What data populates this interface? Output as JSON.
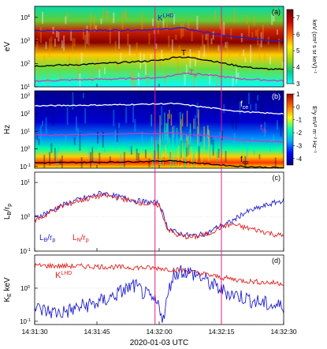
{
  "chart_data": [
    {
      "type": "heatmap",
      "panel_label": "(a)",
      "ylabel": "eV",
      "yscale": "log",
      "ylim": [
        10,
        30000
      ],
      "yticks": [
        {
          "v": 10,
          "t": "10"
        },
        {
          "v": 100,
          "t": "10"
        },
        {
          "v": 1000,
          "t": "10"
        },
        {
          "v": 10000,
          "t": "10"
        }
      ],
      "ytick_exp": [
        "1",
        "2",
        "3",
        "4"
      ],
      "colorbar": {
        "label": "keV (cm² s sr keV)⁻¹",
        "range": [
          3,
          7.5
        ],
        "ticks": [
          "3",
          "4",
          "5",
          "6",
          "7"
        ],
        "colors": [
          "#00ffff",
          "#00cc88",
          "#aadd00",
          "#ffee00",
          "#ff6600",
          "#cc0000",
          "#660000"
        ]
      },
      "annotations": [
        {
          "text": "K",
          "sup": "LHD",
          "color": "#2020d0"
        },
        {
          "text": "T",
          "color": "#000000"
        },
        {
          "text": "T",
          "sub": "e",
          "color": "#c040c0"
        }
      ],
      "series": [
        {
          "name": "K_LHD",
          "color": "#2020d0",
          "x": [
            0,
            10,
            20,
            30,
            32,
            35,
            40,
            45,
            50,
            55,
            60
          ],
          "y": [
            2600,
            2700,
            2800,
            3000,
            3200,
            3500,
            2500,
            1700,
            1300,
            1100,
            1000
          ]
        },
        {
          "name": "T",
          "color": "#000000",
          "x": [
            0,
            10,
            20,
            30,
            32,
            34,
            38,
            42,
            46,
            50,
            55,
            60
          ],
          "y": [
            80,
            90,
            110,
            140,
            160,
            200,
            180,
            140,
            100,
            75,
            60,
            55
          ]
        },
        {
          "name": "T_e",
          "color": "#c040c0",
          "x": [
            0,
            10,
            20,
            30,
            33,
            36,
            40,
            45,
            50,
            55,
            60
          ],
          "y": [
            18,
            20,
            22,
            25,
            30,
            40,
            35,
            28,
            22,
            20,
            18
          ]
        }
      ]
    },
    {
      "type": "heatmap",
      "panel_label": "(b)",
      "ylabel": "Hz",
      "yscale": "log",
      "ylim": [
        0.08,
        2000
      ],
      "yticks": [
        {
          "v": 0.1,
          "t": "10"
        },
        {
          "v": 1,
          "t": "10"
        },
        {
          "v": 10,
          "t": "10"
        },
        {
          "v": 100,
          "t": "10"
        },
        {
          "v": 1000,
          "t": "10"
        }
      ],
      "ytick_exp": [
        "-1",
        "0",
        "1",
        "2",
        "3"
      ],
      "colorbar": {
        "label": "E²y mV² m⁻² Hz⁻¹",
        "range": [
          -4.5,
          1
        ],
        "ticks": [
          "-4",
          "-3",
          "-2",
          "-1",
          "0",
          "1"
        ],
        "colors": [
          "#000080",
          "#0000ff",
          "#00aaff",
          "#00ffaa",
          "#ffff00",
          "#ff6600",
          "#aa0000"
        ]
      },
      "annotations": [
        {
          "text": "f",
          "sub": "ce",
          "color": "#ffffff"
        },
        {
          "text": "f",
          "sub": "lh",
          "color": "#c040c0"
        },
        {
          "text": "f",
          "sub": "cp",
          "color": "#000000"
        }
      ],
      "series": [
        {
          "name": "f_ce",
          "color": "#ffffff",
          "x": [
            0,
            10,
            20,
            30,
            33,
            36,
            40,
            45,
            50,
            55,
            60
          ],
          "y": [
            280,
            300,
            320,
            360,
            380,
            330,
            250,
            180,
            130,
            110,
            100
          ]
        },
        {
          "name": "f_lh",
          "color": "#c040c0",
          "x": [
            0,
            10,
            20,
            30,
            33,
            36,
            40,
            45,
            50,
            55,
            60
          ],
          "y": [
            6,
            6.5,
            7,
            7.5,
            8,
            7,
            6,
            4.5,
            3.2,
            2.8,
            2.5
          ]
        },
        {
          "name": "f_cp",
          "color": "#000000",
          "x": [
            0,
            10,
            20,
            30,
            33,
            36,
            40,
            45,
            50,
            55,
            60
          ],
          "y": [
            0.16,
            0.17,
            0.18,
            0.2,
            0.22,
            0.18,
            0.15,
            0.12,
            0.1,
            0.09,
            0.085
          ]
        }
      ]
    },
    {
      "type": "line",
      "panel_label": "(c)",
      "ylabel": "LB/rp",
      "yscale": "log",
      "ylim": [
        0.1,
        20
      ],
      "yticks": [
        {
          "v": 0.1,
          "t": "10"
        },
        {
          "v": 1,
          "t": "10"
        },
        {
          "v": 10,
          "t": "10"
        }
      ],
      "ytick_exp": [
        "-1",
        "0",
        "1"
      ],
      "legend": [
        {
          "main": "L",
          "sub": "B",
          "rest": "/r",
          "sub2": "p",
          "color": "#2020d0"
        },
        {
          "main": "L",
          "sub": "N",
          "rest": "/r",
          "sub2": "p",
          "color": "#e02020"
        }
      ],
      "series": [
        {
          "name": "LB/rp",
          "color": "#2020d0",
          "x": [
            0,
            2,
            4,
            6,
            8,
            10,
            12,
            14,
            16,
            18,
            20,
            22,
            24,
            26,
            28,
            30,
            32,
            34,
            36,
            38,
            40,
            42,
            44,
            46,
            48,
            50,
            52,
            54,
            56,
            58,
            60
          ],
          "y": [
            0.9,
            1.2,
            1.5,
            2.0,
            2.5,
            3.0,
            3.5,
            4.0,
            5.0,
            4.5,
            3.8,
            3.5,
            3.0,
            2.8,
            2.6,
            2.5,
            0.5,
            0.35,
            0.3,
            0.28,
            0.3,
            0.35,
            0.5,
            0.6,
            0.8,
            1.2,
            1.5,
            1.8,
            2.2,
            2.6,
            3.0
          ]
        },
        {
          "name": "LN/rp",
          "color": "#e02020",
          "x": [
            0,
            2,
            4,
            6,
            8,
            10,
            12,
            14,
            16,
            18,
            20,
            22,
            24,
            26,
            28,
            30,
            32,
            34,
            36,
            38,
            40,
            42,
            44,
            46,
            48,
            50,
            52,
            54,
            56,
            58,
            60
          ],
          "y": [
            0.8,
            1.0,
            1.4,
            1.9,
            2.3,
            2.8,
            3.2,
            3.6,
            4.2,
            4.0,
            3.6,
            3.2,
            2.8,
            2.5,
            2.3,
            2.2,
            0.45,
            0.3,
            0.27,
            0.25,
            0.28,
            0.32,
            0.45,
            0.55,
            0.6,
            0.5,
            0.45,
            0.4,
            0.35,
            0.3,
            0.28
          ]
        }
      ]
    },
    {
      "type": "line",
      "panel_label": "(d)",
      "ylabel": "KE keV",
      "yscale": "log",
      "ylim": [
        0.08,
        10
      ],
      "yticks": [
        {
          "v": 0.1,
          "t": "10"
        },
        {
          "v": 1,
          "t": "10"
        }
      ],
      "ytick_exp": [
        "-1",
        "0"
      ],
      "annotations": [
        {
          "text": "K",
          "sup": "LHD",
          "color": "#e02020"
        }
      ],
      "series": [
        {
          "name": "K_LHD",
          "color": "#e02020",
          "x": [
            0,
            5,
            10,
            15,
            20,
            25,
            30,
            32,
            35,
            40,
            45,
            50,
            55,
            60
          ],
          "y": [
            4.8,
            4.7,
            4.6,
            4.5,
            4.3,
            4.2,
            4.0,
            3.8,
            3.5,
            2.8,
            2.1,
            1.7,
            1.5,
            1.4
          ]
        },
        {
          "name": "K_E",
          "color": "#2020d0",
          "x": [
            0,
            3,
            6,
            9,
            12,
            15,
            18,
            21,
            24,
            27,
            30,
            31,
            33,
            35,
            37,
            39,
            41,
            43,
            45,
            47,
            49,
            51,
            53,
            55,
            57,
            60
          ],
          "y": [
            0.25,
            0.2,
            0.18,
            0.22,
            0.3,
            0.35,
            0.5,
            0.8,
            1.2,
            0.6,
            0.3,
            0.12,
            2.0,
            3.5,
            3.0,
            2.5,
            1.8,
            1.2,
            0.9,
            0.7,
            0.6,
            0.5,
            0.4,
            0.35,
            0.3,
            0.28
          ]
        }
      ]
    }
  ],
  "xaxis": {
    "ticks": [
      "14:31:30",
      "14:31:45",
      "14:32:00",
      "14:32:15",
      "14:32:30"
    ],
    "tick_seconds": [
      0,
      15,
      30,
      45,
      60
    ],
    "date_label": "2020-01-03 UTC",
    "range": [
      0,
      60
    ]
  },
  "vlines": {
    "color": "#e0208a",
    "x": [
      29,
      45
    ]
  }
}
